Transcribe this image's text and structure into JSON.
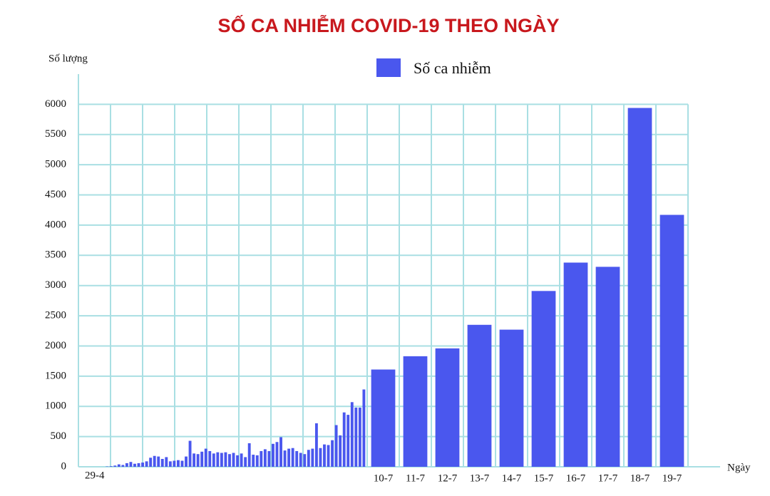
{
  "chart_data": {
    "type": "bar",
    "title": "SỐ CA NHIỄM COVID-19 THEO NGÀY",
    "y_label": "Số lượng",
    "x_label": "Ngày",
    "series": [
      {
        "name": "Số ca nhiễm",
        "color": "#4a57ee",
        "values": [
          0,
          0,
          0,
          0,
          0,
          0,
          5,
          10,
          20,
          40,
          30,
          60,
          80,
          50,
          60,
          70,
          90,
          150,
          180,
          170,
          130,
          160,
          90,
          100,
          110,
          100,
          170,
          430,
          220,
          210,
          250,
          300,
          260,
          220,
          240,
          230,
          240,
          210,
          230,
          190,
          220,
          160,
          390,
          200,
          190,
          260,
          290,
          260,
          380,
          410,
          490,
          270,
          300,
          310,
          260,
          230,
          210,
          280,
          300,
          720,
          310,
          370,
          360,
          440,
          690,
          520,
          900,
          860,
          1070,
          980,
          980,
          1280,
          1610,
          1830,
          1960,
          2350,
          2270,
          2910,
          3380,
          3310,
          5940,
          4170
        ]
      }
    ],
    "categories": [
      "29-4",
      null,
      null,
      null,
      null,
      null,
      null,
      null,
      null,
      null,
      null,
      null,
      null,
      null,
      null,
      null,
      null,
      null,
      null,
      null,
      null,
      null,
      null,
      null,
      null,
      null,
      null,
      null,
      null,
      null,
      null,
      null,
      null,
      null,
      null,
      null,
      null,
      null,
      null,
      null,
      null,
      null,
      null,
      null,
      null,
      null,
      null,
      null,
      null,
      null,
      null,
      null,
      null,
      null,
      null,
      null,
      null,
      null,
      null,
      null,
      null,
      null,
      null,
      null,
      null,
      null,
      null,
      null,
      null,
      null,
      null,
      null,
      "10-7",
      "11-7",
      "12-7",
      "13-7",
      "14-7",
      "15-7",
      "16-7",
      "17-7",
      "18-7",
      "19-7"
    ],
    "ylim": [
      0,
      6500
    ],
    "yticks": [
      0,
      500,
      1000,
      1500,
      2000,
      2500,
      3000,
      3500,
      4000,
      4500,
      5000,
      5500,
      6000
    ],
    "grid": true
  }
}
